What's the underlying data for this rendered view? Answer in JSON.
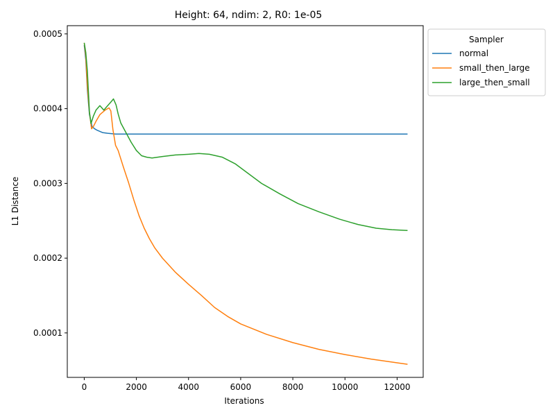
{
  "chart_data": {
    "type": "line",
    "title": "Height: 64, ndim: 2, R0: 1e-05",
    "xlabel": "Iterations",
    "ylabel": "L1 Distance",
    "xlim": [
      -650,
      13000
    ],
    "ylim": [
      4.05e-05,
      0.000511
    ],
    "xticks": [
      0,
      2000,
      4000,
      6000,
      8000,
      10000,
      12000
    ],
    "xtick_labels": [
      "0",
      "2000",
      "4000",
      "6000",
      "8000",
      "10000",
      "12000"
    ],
    "yticks": [
      0.0001,
      0.0002,
      0.0003,
      0.0004,
      0.0005
    ],
    "ytick_labels": [
      "0.0001",
      "0.0002",
      "0.0003",
      "0.0004",
      "0.0005"
    ],
    "grid": false,
    "legend": {
      "title": "Sampler",
      "placement": "outside-top-right"
    },
    "series": [
      {
        "name": "normal",
        "color": "#1f77b4",
        "points": [
          [
            0,
            0.000485
          ],
          [
            60,
            0.000465
          ],
          [
            120,
            0.000425
          ],
          [
            200,
            0.000392
          ],
          [
            300,
            0.000376
          ],
          [
            400,
            0.000373
          ],
          [
            500,
            0.000371
          ],
          [
            700,
            0.000368
          ],
          [
            900,
            0.000367
          ],
          [
            1200,
            0.000366
          ],
          [
            2000,
            0.000366
          ],
          [
            4000,
            0.000366
          ],
          [
            6000,
            0.000366
          ],
          [
            8000,
            0.000366
          ],
          [
            10000,
            0.000366
          ],
          [
            12400,
            0.000366
          ]
        ]
      },
      {
        "name": "small_then_large",
        "color": "#ff7f0e",
        "points": [
          [
            0,
            0.000488
          ],
          [
            60,
            0.00047
          ],
          [
            120,
            0.00043
          ],
          [
            200,
            0.000395
          ],
          [
            280,
            0.000373
          ],
          [
            350,
            0.000376
          ],
          [
            450,
            0.000383
          ],
          [
            600,
            0.000392
          ],
          [
            800,
            0.000398
          ],
          [
            950,
            0.000401
          ],
          [
            1020,
            0.000397
          ],
          [
            1100,
            0.000372
          ],
          [
            1200,
            0.000351
          ],
          [
            1300,
            0.000344
          ],
          [
            1500,
            0.000322
          ],
          [
            1700,
            0.000301
          ],
          [
            1900,
            0.000278
          ],
          [
            2100,
            0.000257
          ],
          [
            2300,
            0.00024
          ],
          [
            2500,
            0.000226
          ],
          [
            2700,
            0.000214
          ],
          [
            3000,
            0.0002
          ],
          [
            3500,
            0.000181
          ],
          [
            4000,
            0.000165
          ],
          [
            4500,
            0.00015
          ],
          [
            5000,
            0.000134
          ],
          [
            5500,
            0.000122
          ],
          [
            6000,
            0.000112
          ],
          [
            7000,
            9.8e-05
          ],
          [
            8000,
            8.7e-05
          ],
          [
            9000,
            7.8e-05
          ],
          [
            10000,
            7.1e-05
          ],
          [
            11000,
            6.5e-05
          ],
          [
            12000,
            6e-05
          ],
          [
            12400,
            5.8e-05
          ]
        ]
      },
      {
        "name": "large_then_small",
        "color": "#2ca02c",
        "points": [
          [
            0,
            0.000488
          ],
          [
            60,
            0.000475
          ],
          [
            120,
            0.00045
          ],
          [
            200,
            0.000395
          ],
          [
            260,
            0.00038
          ],
          [
            350,
            0.00039
          ],
          [
            450,
            0.000398
          ],
          [
            600,
            0.000404
          ],
          [
            750,
            0.000398
          ],
          [
            900,
            0.000404
          ],
          [
            1050,
            0.00041
          ],
          [
            1120,
            0.000413
          ],
          [
            1220,
            0.000405
          ],
          [
            1300,
            0.000393
          ],
          [
            1400,
            0.000381
          ],
          [
            1600,
            0.000368
          ],
          [
            1800,
            0.000355
          ],
          [
            2000,
            0.000344
          ],
          [
            2200,
            0.000337
          ],
          [
            2400,
            0.000335
          ],
          [
            2600,
            0.000334
          ],
          [
            3000,
            0.000336
          ],
          [
            3500,
            0.000338
          ],
          [
            4000,
            0.000339
          ],
          [
            4400,
            0.00034
          ],
          [
            4800,
            0.000339
          ],
          [
            5300,
            0.000335
          ],
          [
            5800,
            0.000326
          ],
          [
            6300,
            0.000313
          ],
          [
            6800,
            0.0003
          ],
          [
            7500,
            0.000286
          ],
          [
            8200,
            0.000273
          ],
          [
            9000,
            0.000262
          ],
          [
            9800,
            0.000252
          ],
          [
            10500,
            0.000245
          ],
          [
            11200,
            0.00024
          ],
          [
            11800,
            0.000238
          ],
          [
            12400,
            0.000237
          ]
        ]
      }
    ]
  }
}
